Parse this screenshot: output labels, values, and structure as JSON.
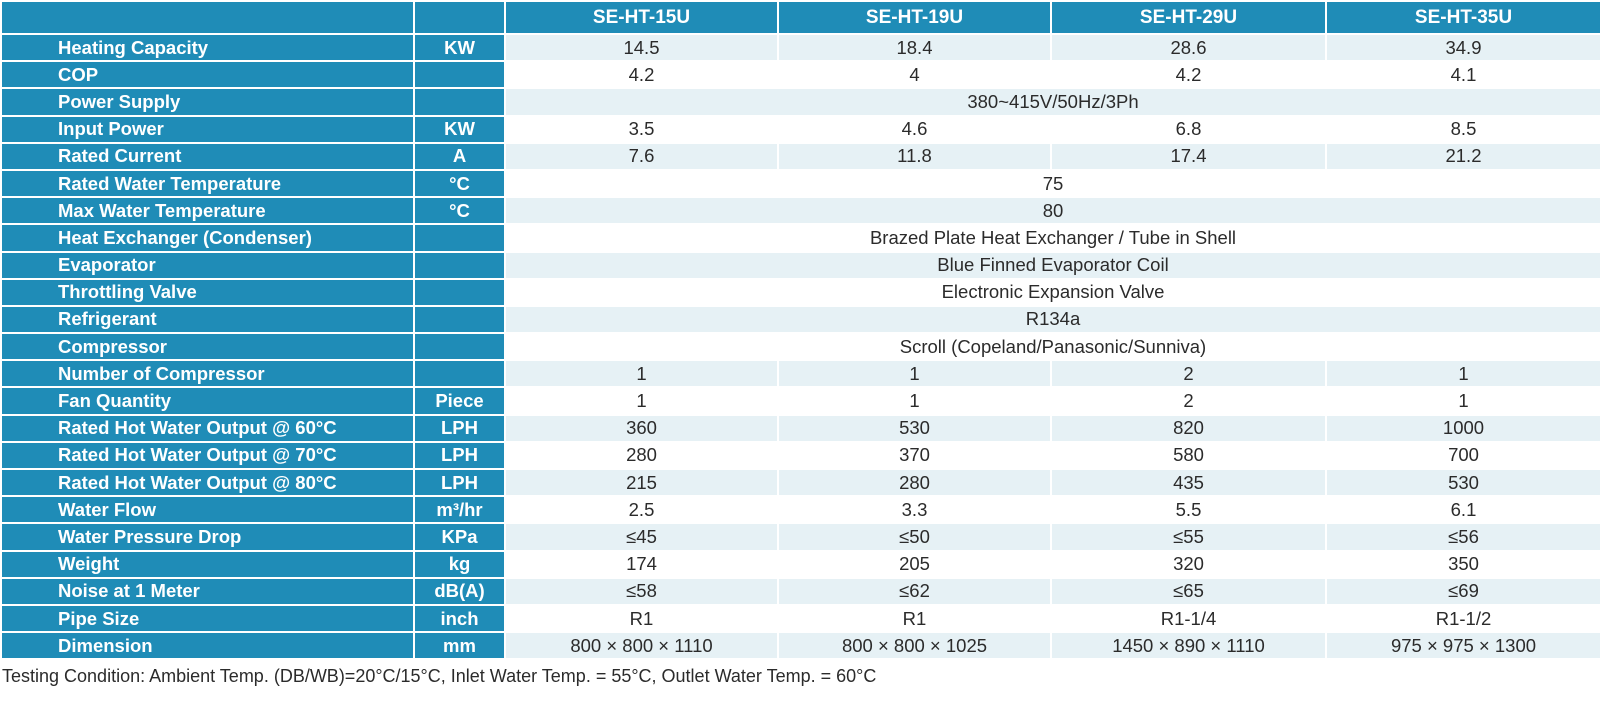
{
  "header": {
    "models": [
      "SE-HT-15U",
      "SE-HT-19U",
      "SE-HT-29U",
      "SE-HT-35U"
    ]
  },
  "rows": [
    {
      "param": "Heating Capacity",
      "unit": "KW",
      "values": [
        "14.5",
        "18.4",
        "28.6",
        "34.9"
      ]
    },
    {
      "param": "COP",
      "unit": "",
      "values": [
        "4.2",
        "4",
        "4.2",
        "4.1"
      ]
    },
    {
      "param": "Power Supply",
      "unit": "",
      "shared": "380~415V/50Hz/3Ph"
    },
    {
      "param": "Input Power",
      "unit": "KW",
      "values": [
        "3.5",
        "4.6",
        "6.8",
        "8.5"
      ]
    },
    {
      "param": "Rated Current",
      "unit": "A",
      "values": [
        "7.6",
        "11.8",
        "17.4",
        "21.2"
      ]
    },
    {
      "param": "Rated Water Temperature",
      "unit": "°C",
      "shared": "75"
    },
    {
      "param": "Max Water Temperature",
      "unit": "°C",
      "shared": "80"
    },
    {
      "param": "Heat Exchanger (Condenser)",
      "unit": "",
      "shared": "Brazed Plate Heat Exchanger / Tube in Shell"
    },
    {
      "param": "Evaporator",
      "unit": "",
      "shared": "Blue Finned Evaporator Coil"
    },
    {
      "param": "Throttling Valve",
      "unit": "",
      "shared": "Electronic Expansion Valve"
    },
    {
      "param": "Refrigerant",
      "unit": "",
      "shared": "R134a"
    },
    {
      "param": "Compressor",
      "unit": "",
      "shared": "Scroll (Copeland/Panasonic/Sunniva)"
    },
    {
      "param": "Number of Compressor",
      "unit": "",
      "values": [
        "1",
        "1",
        "2",
        "1"
      ]
    },
    {
      "param": "Fan Quantity",
      "unit": "Piece",
      "values": [
        "1",
        "1",
        "2",
        "1"
      ]
    },
    {
      "param": "Rated Hot Water Output @ 60°C",
      "unit": "LPH",
      "values": [
        "360",
        "530",
        "820",
        "1000"
      ]
    },
    {
      "param": "Rated Hot Water Output @ 70°C",
      "unit": "LPH",
      "values": [
        "280",
        "370",
        "580",
        "700"
      ]
    },
    {
      "param": "Rated Hot Water Output @ 80°C",
      "unit": "LPH",
      "values": [
        "215",
        "280",
        "435",
        "530"
      ]
    },
    {
      "param": "Water Flow",
      "unit": "m³/hr",
      "values": [
        "2.5",
        "3.3",
        "5.5",
        "6.1"
      ]
    },
    {
      "param": "Water Pressure Drop",
      "unit": "KPa",
      "values": [
        "≤45",
        "≤50",
        "≤55",
        "≤56"
      ]
    },
    {
      "param": "Weight",
      "unit": "kg",
      "values": [
        "174",
        "205",
        "320",
        "350"
      ]
    },
    {
      "param": "Noise at 1 Meter",
      "unit": "dB(A)",
      "values": [
        "≤58",
        "≤62",
        "≤65",
        "≤69"
      ]
    },
    {
      "param": "Pipe Size",
      "unit": "inch",
      "values": [
        "R1",
        "R1",
        "R1-1/4",
        "R1-1/2"
      ]
    },
    {
      "param": "Dimension",
      "unit": "mm",
      "values": [
        "800 × 800 × 1110",
        "800 × 800 × 1025",
        "1450 × 890 × 1110",
        "975 × 975 × 1300"
      ]
    }
  ],
  "footnote": "Testing Condition: Ambient Temp. (DB/WB)=20°C/15°C, Inlet Water Temp. = 55°C, Outlet Water Temp. = 60°C"
}
